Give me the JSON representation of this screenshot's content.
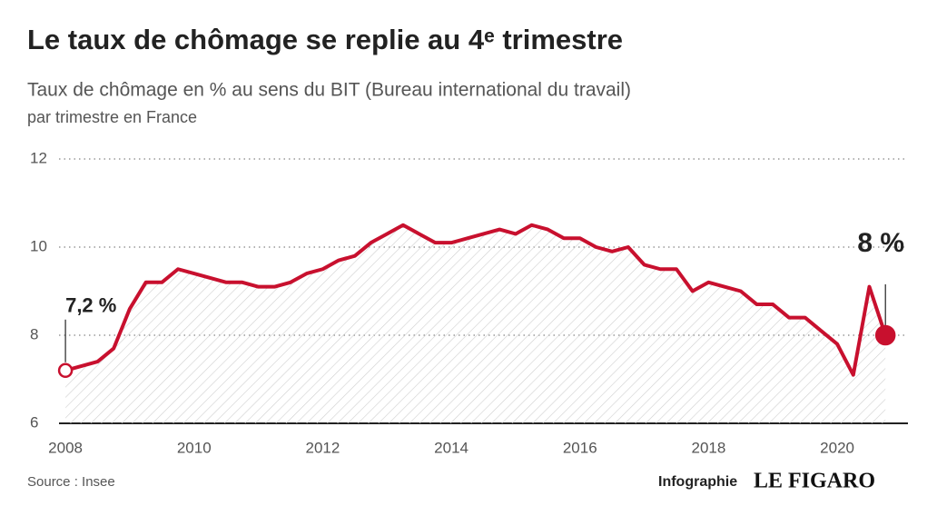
{
  "chart_data": {
    "type": "line",
    "title": "Le taux de chômage se replie au 4ᵉ trimestre",
    "subtitle": "Taux de chômage en % au sens du BIT (Bureau international du travail)",
    "subtitle2": "par trimestre en France",
    "source": "Source : Insee",
    "credit": "Infographie",
    "brand": "LE FIGARO",
    "x": [
      2008,
      2008.25,
      2008.5,
      2008.75,
      2009,
      2009.25,
      2009.5,
      2009.75,
      2010,
      2010.25,
      2010.5,
      2010.75,
      2011,
      2011.25,
      2011.5,
      2011.75,
      2012,
      2012.25,
      2012.5,
      2012.75,
      2013,
      2013.25,
      2013.5,
      2013.75,
      2014,
      2014.25,
      2014.5,
      2014.75,
      2015,
      2015.25,
      2015.5,
      2015.75,
      2016,
      2016.25,
      2016.5,
      2016.75,
      2017,
      2017.25,
      2017.5,
      2017.75,
      2018,
      2018.25,
      2018.5,
      2018.75,
      2019,
      2019.25,
      2019.5,
      2019.75,
      2020,
      2020.25,
      2020.5,
      2020.75
    ],
    "series": [
      {
        "name": "Taux de chômage",
        "color": "#c8102e",
        "values": [
          7.2,
          7.3,
          7.4,
          7.7,
          8.6,
          9.2,
          9.2,
          9.5,
          9.4,
          9.3,
          9.2,
          9.2,
          9.1,
          9.1,
          9.2,
          9.4,
          9.5,
          9.7,
          9.8,
          10.1,
          10.3,
          10.5,
          10.3,
          10.1,
          10.1,
          10.2,
          10.3,
          10.4,
          10.3,
          10.5,
          10.4,
          10.2,
          10.2,
          10.0,
          9.9,
          10.0,
          9.6,
          9.5,
          9.5,
          9.0,
          9.2,
          9.1,
          9.0,
          8.7,
          8.7,
          8.4,
          8.4,
          8.1,
          7.8,
          7.1,
          9.1,
          8.0
        ],
        "value_labels": [
          "7,2 %",
          null,
          null,
          null,
          null,
          null,
          null,
          null,
          null,
          null,
          null,
          null,
          null,
          null,
          null,
          null,
          null,
          null,
          null,
          null,
          null,
          null,
          null,
          null,
          null,
          null,
          null,
          null,
          null,
          null,
          null,
          null,
          null,
          null,
          null,
          null,
          null,
          null,
          null,
          null,
          null,
          null,
          null,
          null,
          null,
          null,
          null,
          null,
          null,
          null,
          null,
          "8 %"
        ]
      }
    ],
    "xlim": [
      2007.9,
      2021.1
    ],
    "xticks": [
      2008,
      2010,
      2012,
      2014,
      2016,
      2018,
      2020
    ],
    "ylim": [
      6,
      12
    ],
    "yticks": [
      6,
      8,
      10,
      12
    ],
    "grid": true
  }
}
